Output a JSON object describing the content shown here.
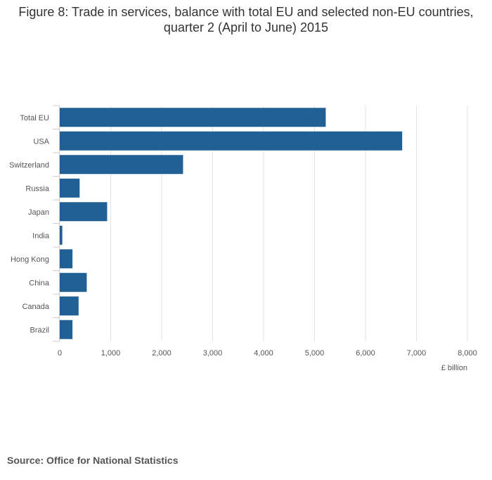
{
  "title": "Figure 8: Trade in services, balance with total EU and selected non-EU countries, quarter 2 (April to June) 2015",
  "source": "Source: Office for National Statistics",
  "colors": {
    "bar": "#206095",
    "grid": "#e3e3e3",
    "axis": "#cccccc"
  },
  "chart_data": {
    "type": "bar",
    "orientation": "horizontal",
    "title": "Figure 8: Trade in services, balance with total EU and selected non-EU countries, quarter 2 (April to June) 2015",
    "xlabel": "£ billion",
    "ylabel": "",
    "categories": [
      "Total EU",
      "USA",
      "Switzerland",
      "Russia",
      "Japan",
      "India",
      "Hong Kong",
      "China",
      "Canada",
      "Brazil"
    ],
    "values": [
      5220,
      6720,
      2420,
      390,
      930,
      50,
      250,
      530,
      370,
      250
    ],
    "xlim": [
      0,
      8000
    ],
    "xticks": [
      0,
      1000,
      2000,
      3000,
      4000,
      5000,
      6000,
      7000,
      8000
    ],
    "xtick_labels": [
      "0",
      "1,000",
      "2,000",
      "3,000",
      "4,000",
      "5,000",
      "6,000",
      "7,000",
      "8,000"
    ],
    "grid": true,
    "legend": "none"
  }
}
